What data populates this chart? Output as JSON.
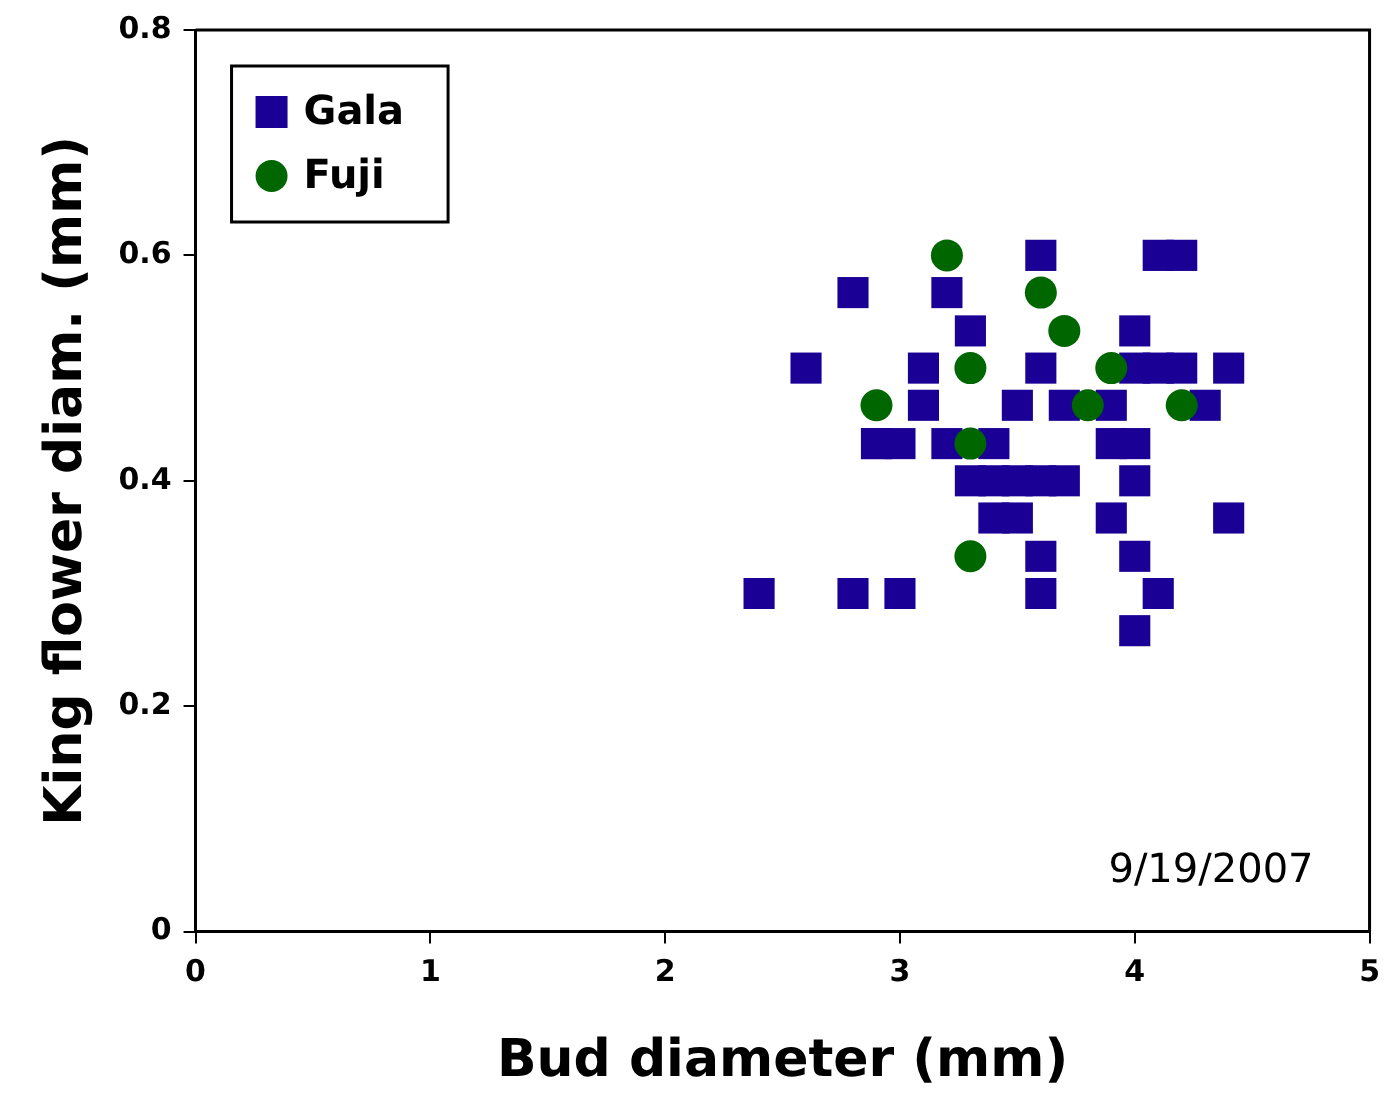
{
  "chart_data": {
    "type": "scatter",
    "xlabel": "Bud diameter (mm)",
    "ylabel": "King flower diam. (mm)",
    "xlim": [
      0,
      5
    ],
    "xticks": [
      0,
      1,
      2,
      3,
      4,
      5
    ],
    "ylim": [
      0,
      0.8
    ],
    "yticks": [
      0,
      0.2,
      0.4,
      0.6,
      0.8
    ],
    "grid": false,
    "legend": "top left",
    "annotations": [
      "9/19/2007"
    ],
    "series": [
      {
        "name": "Gala",
        "color": "#1a0094",
        "marker": "square",
        "x": [
          3.6,
          4.1,
          4.2,
          2.8,
          3.2,
          3.3,
          4.0,
          2.6,
          3.1,
          3.6,
          4.0,
          4.1,
          4.2,
          4.4,
          3.1,
          3.5,
          3.7,
          3.9,
          4.3,
          2.9,
          3.0,
          3.2,
          3.4,
          3.9,
          4.0,
          3.3,
          3.4,
          3.5,
          3.6,
          3.7,
          4.0,
          3.4,
          3.5,
          3.9,
          4.4,
          3.6,
          4.0,
          2.4,
          2.8,
          3.0,
          3.6,
          4.1,
          4.0
        ],
        "values": [
          0.6,
          0.6,
          0.6,
          0.567,
          0.567,
          0.533,
          0.533,
          0.5,
          0.5,
          0.5,
          0.5,
          0.5,
          0.5,
          0.5,
          0.467,
          0.467,
          0.467,
          0.467,
          0.467,
          0.433,
          0.433,
          0.433,
          0.433,
          0.433,
          0.433,
          0.4,
          0.4,
          0.4,
          0.4,
          0.4,
          0.4,
          0.367,
          0.367,
          0.367,
          0.367,
          0.333,
          0.333,
          0.3,
          0.3,
          0.3,
          0.3,
          0.3,
          0.267
        ]
      },
      {
        "name": "Fuji",
        "color": "#006600",
        "marker": "circle",
        "x": [
          3.2,
          3.6,
          3.7,
          3.3,
          3.9,
          2.9,
          3.8,
          4.2,
          3.3,
          3.3
        ],
        "values": [
          0.6,
          0.567,
          0.533,
          0.5,
          0.5,
          0.467,
          0.467,
          0.467,
          0.433,
          0.333
        ]
      }
    ]
  }
}
